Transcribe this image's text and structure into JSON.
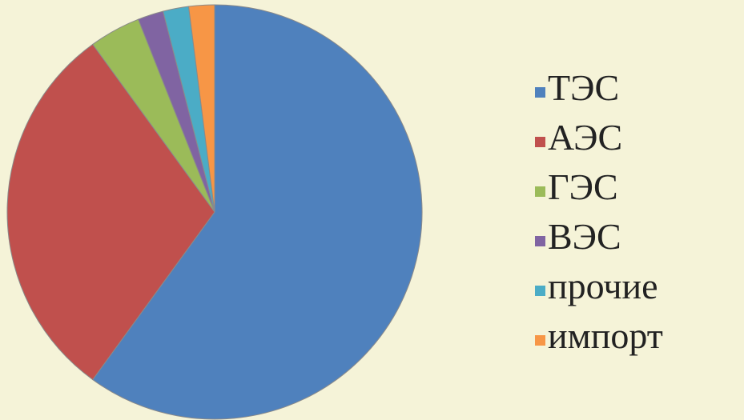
{
  "chart_data": {
    "type": "pie",
    "title": "",
    "categories": [
      "ТЭС",
      "АЭС",
      "ГЭС",
      "ВЭС",
      "прочие",
      "импорт"
    ],
    "values": [
      60,
      30,
      4,
      2,
      2,
      2
    ],
    "colors": [
      "#4f81bd",
      "#c0504d",
      "#9bbb59",
      "#8064a2",
      "#4bacc6",
      "#f79646"
    ],
    "start": "12 o'clock",
    "direction": "clockwise",
    "legend_position": "right"
  },
  "background_color": "#f5f3d8",
  "slice_stroke_color": "#8a8a8a"
}
